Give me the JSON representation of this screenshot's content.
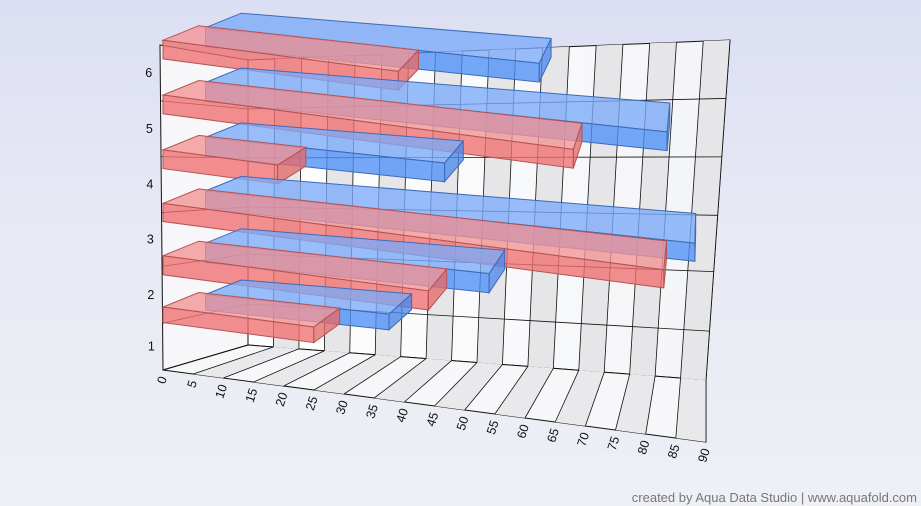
{
  "chart_data": {
    "type": "bar",
    "orientation": "horizontal",
    "projection": "3d",
    "categories": [
      "1",
      "2",
      "3",
      "4",
      "5",
      "6"
    ],
    "series": [
      {
        "color": "#f07070",
        "values": [
          25,
          44,
          83,
          19,
          68,
          39
        ]
      },
      {
        "color": "#4f8ff7",
        "values": [
          33,
          51,
          88,
          43,
          83,
          60
        ]
      }
    ],
    "xlim": [
      0,
      90
    ],
    "xticks": [
      "0",
      "5",
      "10",
      "15",
      "20",
      "25",
      "30",
      "35",
      "40",
      "45",
      "50",
      "55",
      "60",
      "65",
      "70",
      "75",
      "80",
      "85",
      "90"
    ],
    "grid": true,
    "legend": "none"
  },
  "credit": "created by Aqua Data Studio | www.aquafold.com"
}
